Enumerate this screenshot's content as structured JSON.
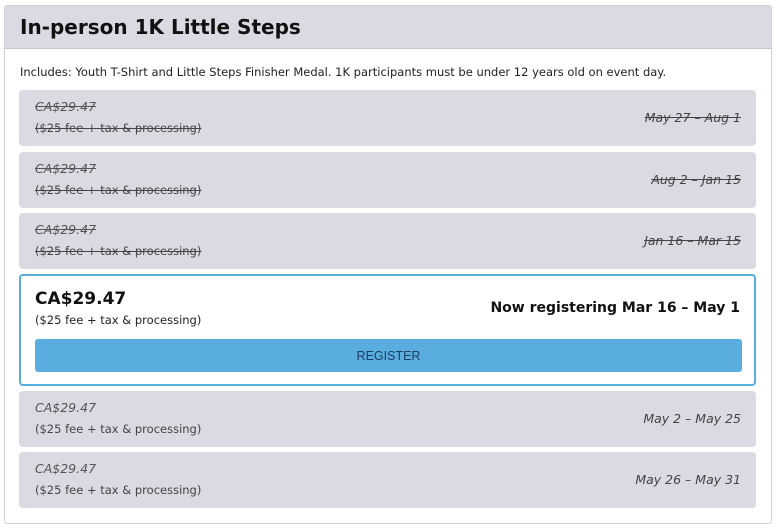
{
  "title": "In-person 1K Little Steps",
  "description": "Includes: Youth T-Shirt and Little Steps Finisher Medal. 1K participants must be under 12 years old on event day.",
  "tiers": [
    {
      "price": "CA$29.47",
      "fee": "($25 fee + tax & processing)",
      "dates": "May 27 – Aug 1",
      "status": "past"
    },
    {
      "price": "CA$29.47",
      "fee": "($25 fee + tax & processing)",
      "dates": "Aug 2 – Jan 15",
      "status": "past"
    },
    {
      "price": "CA$29.47",
      "fee": "($25 fee + tax & processing)",
      "dates": "Jan 16 – Mar 15",
      "status": "past"
    },
    {
      "price": "CA$29.47",
      "fee": "($25 fee + tax & processing)",
      "dates": "Now registering Mar 16 – May 1",
      "status": "current",
      "button": "REGISTER"
    },
    {
      "price": "CA$29.47",
      "fee": "($25 fee + tax & processing)",
      "dates": "May 2 – May 25",
      "status": "future"
    },
    {
      "price": "CA$29.47",
      "fee": "($25 fee + tax & processing)",
      "dates": "May 26 – May 31",
      "status": "future"
    }
  ],
  "colors": {
    "accent": "#5aaddf",
    "tier_bg": "#dadae3"
  }
}
